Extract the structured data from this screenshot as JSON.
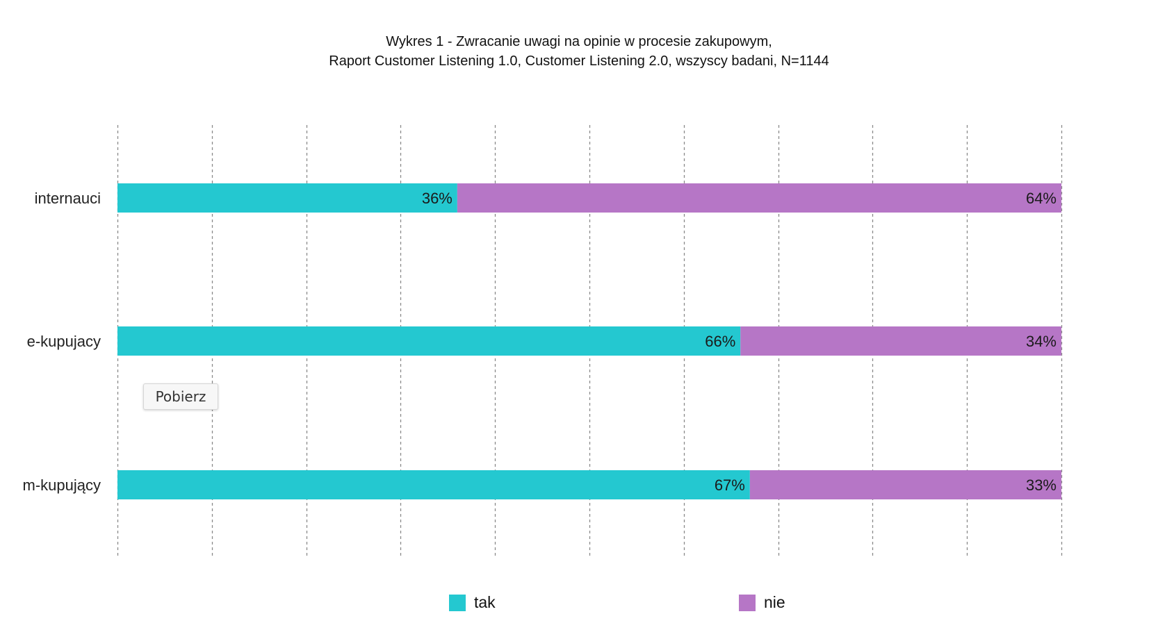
{
  "chart_data": {
    "type": "bar",
    "orientation": "horizontal",
    "stacked": true,
    "title_lines": [
      "Wykres 1 - Zwracanie uwagi na opinie w procesie zakupowym,",
      "Raport Customer Listening 1.0, Customer Listening 2.0, wszyscy badani, N=1144"
    ],
    "categories": [
      "internauci",
      "e-kupujacy",
      "m-kupujący"
    ],
    "series": [
      {
        "name": "tak",
        "values": [
          36,
          66,
          67
        ],
        "color": "#24C8D0"
      },
      {
        "name": "nie",
        "values": [
          64,
          34,
          33
        ],
        "color": "#B676C6"
      }
    ],
    "value_suffix": "%",
    "xlim": [
      0,
      100
    ],
    "grid_ticks": [
      0,
      10,
      20,
      30,
      40,
      50,
      60,
      70,
      80,
      90,
      100
    ],
    "grid": true,
    "grid_style": "dotted",
    "legend_position": "bottom"
  },
  "download_button": {
    "label": "Pobierz"
  }
}
